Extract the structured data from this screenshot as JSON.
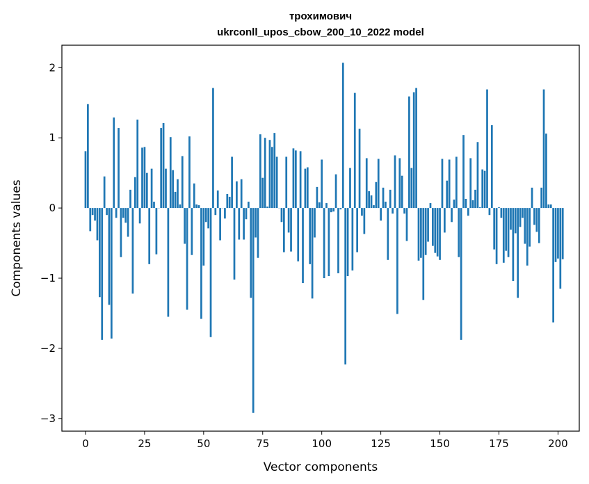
{
  "chart_data": {
    "type": "bar",
    "title_line1": "трохимович",
    "title_line2": "ukrconll_upos_cbow_200_10_2022 model",
    "xlabel": "Vector components",
    "ylabel": "Components values",
    "xlim": [
      -10,
      209
    ],
    "ylim": [
      -3.18,
      2.32
    ],
    "xticks": [
      0,
      25,
      50,
      75,
      100,
      125,
      150,
      175,
      200
    ],
    "yticks": [
      -3,
      -2,
      -1,
      0,
      1,
      2
    ],
    "ytick_labels": [
      "−3",
      "−2",
      "−1",
      "0",
      "1",
      "2"
    ],
    "grid": false,
    "legend": false,
    "bar_color": "#1f77b4",
    "x_start": 0,
    "values": [
      0.81,
      1.48,
      -0.33,
      -0.1,
      -0.18,
      -0.46,
      -1.27,
      -1.88,
      0.45,
      -0.1,
      -1.38,
      -1.86,
      1.29,
      -0.14,
      1.14,
      -0.7,
      -0.14,
      -0.21,
      -0.41,
      0.26,
      -1.22,
      0.44,
      1.26,
      -0.22,
      0.86,
      0.87,
      0.5,
      -0.8,
      0.56,
      0.09,
      -0.66,
      0.0,
      1.14,
      1.21,
      0.56,
      -1.55,
      1.01,
      0.54,
      0.23,
      0.41,
      0.05,
      0.74,
      -0.51,
      -1.45,
      1.02,
      -0.67,
      0.35,
      0.05,
      0.04,
      -1.58,
      -0.82,
      -0.2,
      -0.29,
      -1.84,
      1.71,
      -0.1,
      0.25,
      -0.46,
      0.0,
      -0.15,
      0.2,
      0.16,
      0.73,
      -1.02,
      0.38,
      -0.45,
      0.41,
      -0.45,
      -0.16,
      0.09,
      -1.28,
      -2.92,
      -0.42,
      -0.71,
      1.05,
      0.43,
      1.0,
      0.02,
      0.97,
      0.87,
      1.07,
      0.73,
      0.0,
      -0.2,
      -0.63,
      0.73,
      -0.35,
      -0.62,
      0.85,
      0.82,
      -0.76,
      0.81,
      -1.07,
      0.56,
      0.58,
      -0.8,
      -1.29,
      -0.42,
      0.3,
      0.08,
      0.69,
      -1.0,
      0.07,
      -0.97,
      -0.06,
      -0.05,
      0.48,
      -0.93,
      -0.02,
      2.07,
      -2.23,
      -0.97,
      0.57,
      -0.89,
      1.64,
      -0.63,
      1.13,
      -0.11,
      -0.37,
      0.71,
      0.24,
      0.18,
      0.04,
      0.37,
      0.7,
      -0.18,
      0.29,
      0.09,
      -0.74,
      0.26,
      -0.08,
      0.75,
      -1.51,
      0.71,
      0.46,
      -0.08,
      -0.47,
      1.59,
      0.57,
      1.65,
      1.71,
      -0.75,
      -0.71,
      -1.31,
      -0.67,
      -0.48,
      0.07,
      -0.54,
      -0.64,
      -0.69,
      -0.74,
      0.7,
      -0.35,
      0.39,
      0.69,
      -0.2,
      0.12,
      0.73,
      -0.7,
      -1.88,
      1.04,
      0.13,
      -0.11,
      0.71,
      0.11,
      0.26,
      0.94,
      0.01,
      0.55,
      0.53,
      1.69,
      -0.1,
      1.18,
      -0.59,
      -0.8,
      0.01,
      -0.14,
      -0.78,
      -0.61,
      -0.7,
      -0.31,
      -1.04,
      -0.36,
      -1.28,
      -0.27,
      -0.14,
      -0.51,
      -0.82,
      -0.55,
      0.29,
      -0.24,
      -0.34,
      -0.5,
      0.29,
      1.69,
      1.06,
      0.05,
      0.05,
      -1.63,
      -0.77,
      -0.72,
      -1.15,
      -0.73
    ]
  }
}
